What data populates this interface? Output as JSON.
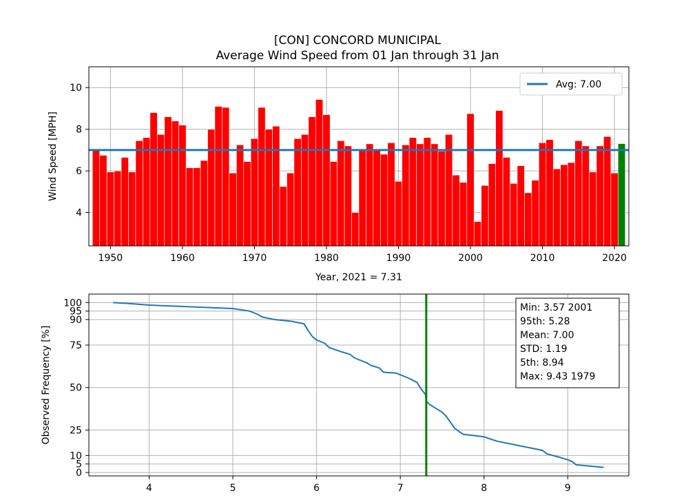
{
  "chart_data": [
    {
      "type": "bar",
      "title": "[CON] CONCORD MUNICIPAL",
      "subtitle": "Average Wind Speed from 01 Jan through 31 Jan",
      "xlabel": "Year, 2021 = 7.31",
      "ylabel": "Wind Speed [MPH]",
      "xlim": [
        1947,
        2022
      ],
      "ylim": [
        2.4,
        11.0
      ],
      "xticks": [
        1950,
        1960,
        1970,
        1980,
        1990,
        2000,
        2010,
        2020
      ],
      "yticks": [
        4,
        6,
        8,
        10
      ],
      "grid": true,
      "bar_color": "#ff0000",
      "highlight_color": "#008000",
      "avg_color": "#1f77b4",
      "average": 7.0,
      "legend_label": "Avg: 7.00",
      "legend_position": "top-right",
      "highlight_year": 2021,
      "years": [
        1948,
        1949,
        1950,
        1951,
        1952,
        1953,
        1954,
        1955,
        1956,
        1957,
        1958,
        1959,
        1960,
        1961,
        1962,
        1963,
        1964,
        1965,
        1966,
        1967,
        1968,
        1969,
        1970,
        1971,
        1972,
        1973,
        1974,
        1975,
        1976,
        1977,
        1978,
        1979,
        1980,
        1981,
        1982,
        1983,
        1984,
        1985,
        1986,
        1987,
        1988,
        1989,
        1990,
        1991,
        1992,
        1993,
        1994,
        1995,
        1996,
        1997,
        1998,
        1999,
        2000,
        2001,
        2002,
        2003,
        2004,
        2005,
        2006,
        2007,
        2008,
        2009,
        2010,
        2011,
        2012,
        2013,
        2014,
        2015,
        2016,
        2017,
        2018,
        2019,
        2020,
        2021
      ],
      "values": [
        7.0,
        6.75,
        5.95,
        6.0,
        6.65,
        5.95,
        7.45,
        7.6,
        8.8,
        7.75,
        8.6,
        8.4,
        8.2,
        6.15,
        6.15,
        6.5,
        8.0,
        9.1,
        9.05,
        5.9,
        7.25,
        6.45,
        7.55,
        9.05,
        8.0,
        8.15,
        5.25,
        5.9,
        7.55,
        7.75,
        8.6,
        9.43,
        8.7,
        6.45,
        7.45,
        7.2,
        4.0,
        7.0,
        7.3,
        7.0,
        6.8,
        7.35,
        5.5,
        7.25,
        7.6,
        7.3,
        7.6,
        7.3,
        6.95,
        7.75,
        5.8,
        5.45,
        8.75,
        3.57,
        5.3,
        6.35,
        8.9,
        6.65,
        5.4,
        6.25,
        4.95,
        5.55,
        7.35,
        7.5,
        6.1,
        6.3,
        6.4,
        7.45,
        7.2,
        5.95,
        7.2,
        7.65,
        5.9,
        7.31
      ]
    },
    {
      "type": "line",
      "ylabel": "Observed Frequency [%]",
      "xlim": [
        3.28,
        9.73
      ],
      "ylim": [
        -2,
        105
      ],
      "xticks": [
        4,
        5,
        6,
        7,
        8,
        9
      ],
      "yticks": [
        0,
        5,
        10,
        25,
        50,
        75,
        90,
        95,
        100
      ],
      "grid": true,
      "line_color": "#1f77b4",
      "marker_line": 7.31,
      "marker_color": "#008000",
      "x": [
        3.57,
        3.75,
        4.0,
        4.5,
        5.0,
        5.2,
        5.3,
        5.35,
        5.5,
        5.7,
        5.85,
        5.9,
        5.95,
        6.0,
        6.1,
        6.15,
        6.3,
        6.4,
        6.45,
        6.5,
        6.6,
        6.65,
        6.75,
        6.8,
        6.95,
        7.0,
        7.1,
        7.2,
        7.25,
        7.3,
        7.31,
        7.35,
        7.45,
        7.5,
        7.55,
        7.6,
        7.65,
        7.75,
        8.0,
        8.15,
        8.4,
        8.6,
        8.7,
        8.75,
        8.9,
        9.0,
        9.05,
        9.1,
        9.43
      ],
      "y": [
        100,
        99.5,
        98.5,
        97.5,
        96.5,
        95.0,
        93.0,
        91.5,
        90.0,
        89.0,
        87.5,
        83.5,
        80.0,
        78.0,
        76.0,
        73.5,
        71.0,
        69.5,
        67.5,
        66.5,
        64.5,
        63.0,
        61.5,
        59.0,
        58.5,
        57.5,
        55.5,
        53.0,
        49.0,
        46.0,
        42.0,
        40.0,
        37.0,
        35.5,
        33.0,
        29.5,
        26.0,
        22.5,
        21.0,
        18.5,
        16.0,
        14.0,
        13.0,
        11.0,
        9.0,
        7.5,
        6.5,
        4.5,
        3.0
      ],
      "stats": [
        "Min: 3.57 2001",
        "95th: 5.28",
        "Mean: 7.00",
        "STD: 1.19",
        "5th: 8.94",
        "Max: 9.43 1979"
      ]
    }
  ]
}
